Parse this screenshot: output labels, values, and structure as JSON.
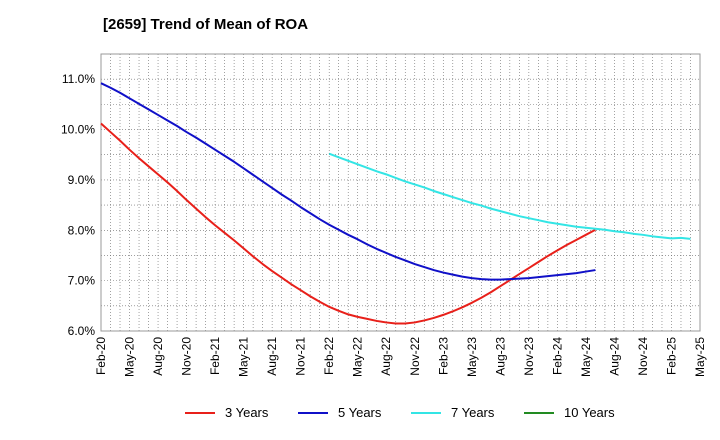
{
  "chart_data": {
    "type": "line",
    "title": "[2659]  Trend of Mean of ROA",
    "xlabel": "",
    "ylabel": "",
    "x_ticks": [
      "Feb-20",
      "May-20",
      "Aug-20",
      "Nov-20",
      "Feb-21",
      "May-21",
      "Aug-21",
      "Nov-21",
      "Feb-22",
      "May-22",
      "Aug-22",
      "Nov-22",
      "Feb-23",
      "May-23",
      "Aug-23",
      "Nov-23",
      "Feb-24",
      "May-24",
      "Aug-24",
      "Nov-24",
      "Feb-25",
      "May-25"
    ],
    "y_ticks": [
      "6.0%",
      "7.0%",
      "8.0%",
      "9.0%",
      "10.0%",
      "11.0%"
    ],
    "ylim": [
      6.0,
      11.5
    ],
    "grid": true,
    "legend_position": "bottom",
    "series": [
      {
        "name": "3 Years",
        "color": "#e8201a",
        "start_index": 0,
        "values": [
          10.12,
          9.95,
          9.78,
          9.6,
          9.43,
          9.27,
          9.11,
          8.95,
          8.78,
          8.6,
          8.43,
          8.26,
          8.1,
          7.95,
          7.8,
          7.64,
          7.48,
          7.33,
          7.19,
          7.06,
          6.93,
          6.81,
          6.69,
          6.58,
          6.48,
          6.4,
          6.33,
          6.28,
          6.24,
          6.2,
          6.17,
          6.15,
          6.15,
          6.17,
          6.21,
          6.26,
          6.32,
          6.39,
          6.47,
          6.56,
          6.66,
          6.77,
          6.89,
          7.01,
          7.13,
          7.25,
          7.37,
          7.49,
          7.6,
          7.71,
          7.81,
          7.91,
          8.01
        ]
      },
      {
        "name": "5 Years",
        "color": "#1010c8",
        "start_index": 0,
        "values": [
          10.92,
          10.83,
          10.73,
          10.62,
          10.51,
          10.4,
          10.29,
          10.18,
          10.07,
          9.95,
          9.84,
          9.72,
          9.6,
          9.48,
          9.36,
          9.23,
          9.1,
          8.97,
          8.84,
          8.71,
          8.59,
          8.46,
          8.34,
          8.22,
          8.11,
          8.01,
          7.91,
          7.82,
          7.72,
          7.63,
          7.55,
          7.47,
          7.4,
          7.33,
          7.27,
          7.21,
          7.16,
          7.12,
          7.08,
          7.05,
          7.03,
          7.02,
          7.02,
          7.03,
          7.04,
          7.05,
          7.07,
          7.09,
          7.11,
          7.13,
          7.15,
          7.18,
          7.21
        ]
      },
      {
        "name": "7 Years",
        "color": "#33e5e5",
        "start_index": 24,
        "values": [
          9.52,
          9.45,
          9.38,
          9.31,
          9.24,
          9.17,
          9.11,
          9.04,
          8.97,
          8.91,
          8.85,
          8.78,
          8.72,
          8.66,
          8.6,
          8.54,
          8.49,
          8.43,
          8.38,
          8.33,
          8.28,
          8.24,
          8.2,
          8.16,
          8.13,
          8.1,
          8.07,
          8.05,
          8.03,
          8.01,
          7.98,
          7.96,
          7.93,
          7.91,
          7.88,
          7.86,
          7.84,
          7.85,
          7.83
        ]
      },
      {
        "name": "10 Years",
        "color": "#228b22",
        "start_index": 0,
        "values": []
      }
    ]
  }
}
